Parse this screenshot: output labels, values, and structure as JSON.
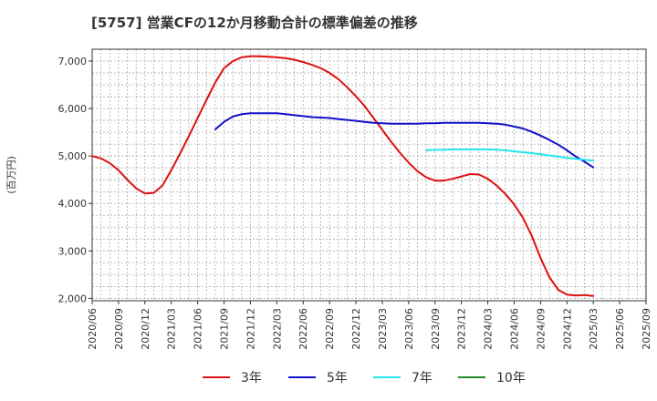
{
  "chart_data": {
    "type": "line",
    "title": "[5757]  営業CFの12か月移動合計の標準偏差の推移",
    "ylabel": "(百万円)",
    "xlabel": "",
    "ylim": [
      1950,
      7250
    ],
    "yticks": [
      2000,
      3000,
      4000,
      5000,
      6000,
      7000
    ],
    "ytick_labels": [
      "2,000",
      "3,000",
      "4,000",
      "5,000",
      "6,000",
      "7,000"
    ],
    "xlim": [
      "2020-06",
      "2025-09"
    ],
    "xtick_labels": [
      "2020/06",
      "2020/09",
      "2020/12",
      "2021/03",
      "2021/06",
      "2021/09",
      "2021/12",
      "2022/03",
      "2022/06",
      "2022/09",
      "2022/12",
      "2023/03",
      "2023/06",
      "2023/09",
      "2023/12",
      "2024/03",
      "2024/06",
      "2024/09",
      "2024/12",
      "2025/03",
      "2025/06",
      "2025/09"
    ],
    "grid": true,
    "legend_position": "bottom",
    "series": [
      {
        "name": "3年",
        "color": "#dd1111",
        "points": [
          [
            "2020-06",
            5000
          ],
          [
            "2020-07",
            4950
          ],
          [
            "2020-08",
            4850
          ],
          [
            "2020-09",
            4700
          ],
          [
            "2020-10",
            4500
          ],
          [
            "2020-11",
            4320
          ],
          [
            "2020-12",
            4210
          ],
          [
            "2021-01",
            4220
          ],
          [
            "2021-02",
            4380
          ],
          [
            "2021-03",
            4700
          ],
          [
            "2021-04",
            5050
          ],
          [
            "2021-05",
            5420
          ],
          [
            "2021-06",
            5800
          ],
          [
            "2021-07",
            6180
          ],
          [
            "2021-08",
            6550
          ],
          [
            "2021-09",
            6850
          ],
          [
            "2021-10",
            7000
          ],
          [
            "2021-11",
            7080
          ],
          [
            "2021-12",
            7100
          ],
          [
            "2022-01",
            7100
          ],
          [
            "2022-02",
            7090
          ],
          [
            "2022-03",
            7080
          ],
          [
            "2022-04",
            7060
          ],
          [
            "2022-05",
            7030
          ],
          [
            "2022-06",
            6980
          ],
          [
            "2022-07",
            6920
          ],
          [
            "2022-08",
            6850
          ],
          [
            "2022-09",
            6750
          ],
          [
            "2022-10",
            6620
          ],
          [
            "2022-11",
            6450
          ],
          [
            "2022-12",
            6260
          ],
          [
            "2022-13",
            6050
          ],
          [
            "2023-02",
            5800
          ],
          [
            "2023-03",
            5550
          ],
          [
            "2023-04",
            5300
          ],
          [
            "2023-05",
            5070
          ],
          [
            "2023-06",
            4860
          ],
          [
            "2023-07",
            4680
          ],
          [
            "2023-08",
            4550
          ],
          [
            "2023-09",
            4480
          ],
          [
            "2023-10",
            4480
          ],
          [
            "2023-11",
            4520
          ],
          [
            "2023-12",
            4570
          ],
          [
            "2024-01",
            4620
          ],
          [
            "2024-02",
            4610
          ],
          [
            "2024-03",
            4520
          ],
          [
            "2024-04",
            4380
          ],
          [
            "2024-05",
            4200
          ],
          [
            "2024-06",
            3980
          ],
          [
            "2024-07",
            3700
          ],
          [
            "2024-08",
            3320
          ],
          [
            "2024-09",
            2850
          ],
          [
            "2024-10",
            2450
          ],
          [
            "2024-11",
            2180
          ],
          [
            "2024-12",
            2080
          ],
          [
            "2025-01",
            2060
          ],
          [
            "2025-02",
            2070
          ],
          [
            "2025-03",
            2050
          ]
        ]
      },
      {
        "name": "5年",
        "color": "#1010cc",
        "points": [
          [
            "2021-08",
            5560
          ],
          [
            "2021-09",
            5720
          ],
          [
            "2021-10",
            5830
          ],
          [
            "2021-11",
            5880
          ],
          [
            "2021-12",
            5900
          ],
          [
            "2022-01",
            5900
          ],
          [
            "2022-02",
            5900
          ],
          [
            "2022-03",
            5900
          ],
          [
            "2022-04",
            5880
          ],
          [
            "2022-05",
            5860
          ],
          [
            "2022-06",
            5840
          ],
          [
            "2022-07",
            5820
          ],
          [
            "2022-08",
            5810
          ],
          [
            "2022-09",
            5800
          ],
          [
            "2022-10",
            5780
          ],
          [
            "2022-11",
            5760
          ],
          [
            "2022-12",
            5740
          ],
          [
            "2023-01",
            5720
          ],
          [
            "2023-02",
            5700
          ],
          [
            "2023-03",
            5690
          ],
          [
            "2023-04",
            5680
          ],
          [
            "2023-05",
            5680
          ],
          [
            "2023-06",
            5680
          ],
          [
            "2023-07",
            5680
          ],
          [
            "2023-08",
            5690
          ],
          [
            "2023-09",
            5690
          ],
          [
            "2023-10",
            5700
          ],
          [
            "2023-11",
            5700
          ],
          [
            "2023-12",
            5700
          ],
          [
            "2024-01",
            5700
          ],
          [
            "2024-02",
            5700
          ],
          [
            "2024-03",
            5690
          ],
          [
            "2024-04",
            5680
          ],
          [
            "2024-05",
            5660
          ],
          [
            "2024-06",
            5620
          ],
          [
            "2024-07",
            5580
          ],
          [
            "2024-08",
            5510
          ],
          [
            "2024-09",
            5430
          ],
          [
            "2024-10",
            5340
          ],
          [
            "2024-11",
            5240
          ],
          [
            "2024-12",
            5120
          ],
          [
            "2025-01",
            4990
          ],
          [
            "2025-02",
            4880
          ],
          [
            "2025-03",
            4760
          ]
        ]
      },
      {
        "name": "7年",
        "color": "#22e5ee",
        "points": [
          [
            "2023-08",
            5120
          ],
          [
            "2023-09",
            5130
          ],
          [
            "2023-10",
            5130
          ],
          [
            "2023-11",
            5140
          ],
          [
            "2023-12",
            5140
          ],
          [
            "2024-01",
            5140
          ],
          [
            "2024-02",
            5140
          ],
          [
            "2024-03",
            5140
          ],
          [
            "2024-04",
            5130
          ],
          [
            "2024-05",
            5120
          ],
          [
            "2024-06",
            5100
          ],
          [
            "2024-07",
            5080
          ],
          [
            "2024-08",
            5060
          ],
          [
            "2024-09",
            5040
          ],
          [
            "2024-10",
            5010
          ],
          [
            "2024-11",
            4990
          ],
          [
            "2024-12",
            4960
          ],
          [
            "2025-01",
            4940
          ],
          [
            "2025-02",
            4920
          ],
          [
            "2025-03",
            4900
          ]
        ]
      },
      {
        "name": "10年",
        "color": "#228b22",
        "points": []
      }
    ]
  }
}
